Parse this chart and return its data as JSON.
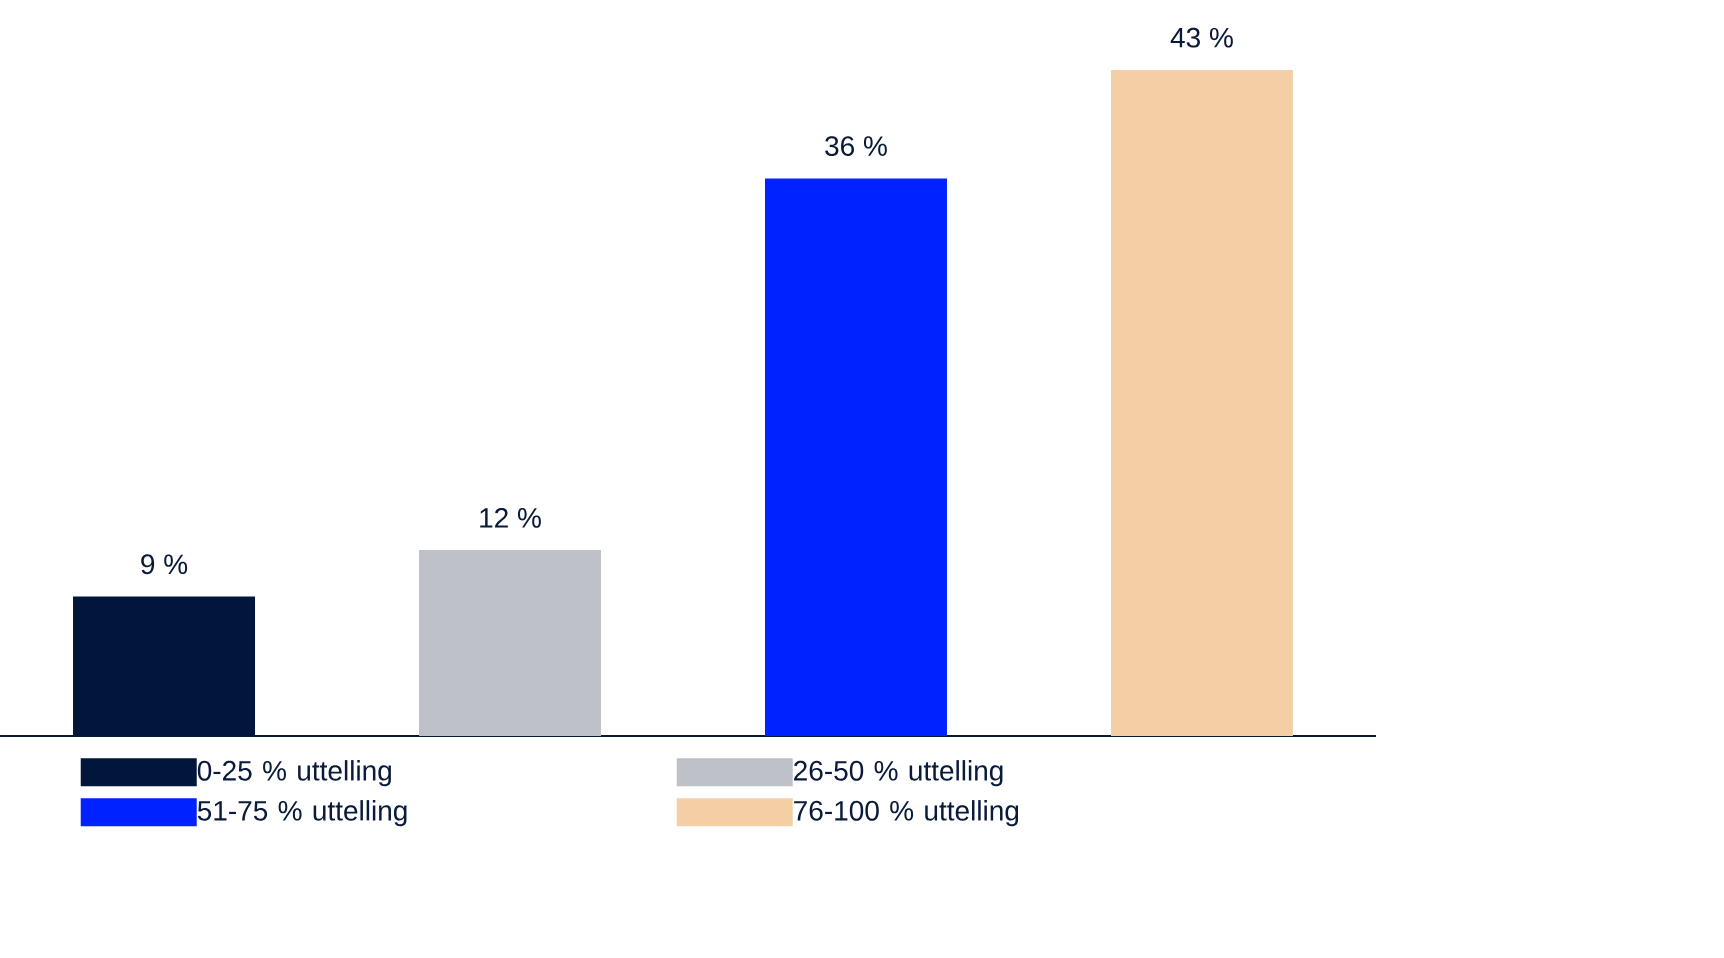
{
  "chart_data": {
    "type": "bar",
    "categories": [
      null,
      null,
      null,
      null
    ],
    "series": [
      {
        "name": "0-25 % uttelling",
        "color": "#00163a",
        "values": [
          9,
          null,
          null,
          null
        ],
        "value_labels": [
          "9 %",
          null,
          null,
          null
        ]
      },
      {
        "name": "26-50 % uttelling",
        "color": "#bfc1c8",
        "values": [
          null,
          12,
          null,
          null
        ],
        "value_labels": [
          null,
          "12 %",
          null,
          null
        ]
      },
      {
        "name": "51-75 % uttelling",
        "color": "#0022ff",
        "values": [
          null,
          null,
          36,
          null
        ],
        "value_labels": [
          null,
          null,
          "36 %",
          null
        ]
      },
      {
        "name": "76-100 % uttelling",
        "color": "#f4cea4",
        "values": [
          null,
          null,
          null,
          43
        ],
        "value_labels": [
          null,
          null,
          null,
          "43 %"
        ]
      }
    ],
    "stacked": true,
    "legend": "bottom"
  }
}
